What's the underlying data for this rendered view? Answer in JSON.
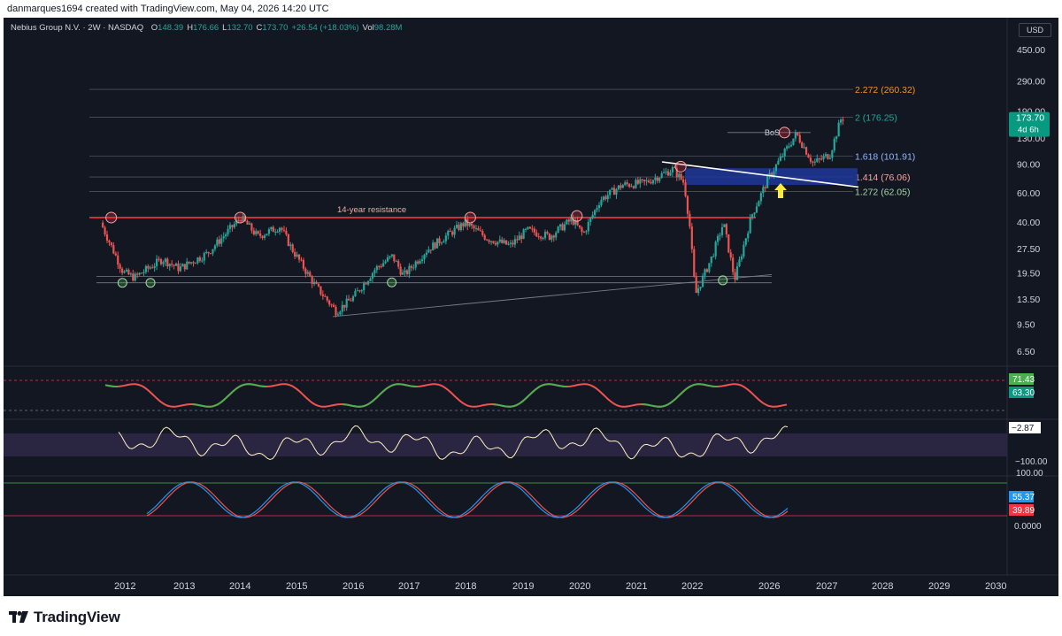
{
  "header": {
    "credit": "danmarques1694 created with TradingView.com, May 04, 2026 14:20 UTC"
  },
  "symbol": {
    "title": "Nebius Group N.V. · 2W · NASDAQ",
    "ohlc": [
      {
        "k": "O",
        "v": "148.39"
      },
      {
        "k": "H",
        "v": "176.66"
      },
      {
        "k": "L",
        "v": "132.70"
      },
      {
        "k": "C",
        "v": "173.70"
      },
      {
        "k": "",
        "v": "+26.54 (+18.03%)"
      },
      {
        "k": "Vol",
        "v": "98.28M"
      }
    ]
  },
  "currency_button": "USD",
  "price_axis": {
    "labels": [
      "450.00",
      "290.00",
      "190.00",
      "130.00",
      "90.00",
      "60.00",
      "40.00",
      "27.50",
      "19.50",
      "13.50",
      "9.50",
      "6.50"
    ],
    "last_price": "173.70",
    "countdown": "4d 6h"
  },
  "fib_levels": [
    {
      "label": "2.272 (260.32)",
      "price": 260.32,
      "color": "#f7931a"
    },
    {
      "label": "2 (176.25)",
      "price": 176.25,
      "color": "#26a69a"
    },
    {
      "label": "1.618 (101.91)",
      "price": 101.91,
      "color": "#8fb7ff"
    },
    {
      "label": "1.414 (76.06)",
      "price": 76.06,
      "color": "#f7a6a6"
    },
    {
      "label": "1.272 (62.05)",
      "price": 62.05,
      "color": "#a5d6a7"
    }
  ],
  "annotations": {
    "resistance": "14-year resistance",
    "bos": "BoS"
  },
  "indicators": {
    "rsi": {
      "upper": "71.43",
      "lower": "63.30"
    },
    "cci": {
      "value": "−2.87",
      "bottom": "−100.00"
    },
    "stoch": {
      "top": "100.00",
      "k": "55.37",
      "d": "39.89",
      "bottom": "0.0000"
    }
  },
  "time_axis": [
    "2012",
    "2013",
    "2014",
    "2015",
    "2016",
    "2017",
    "2018",
    "2019",
    "2020",
    "2021",
    "2022",
    "2026",
    "2027",
    "2028",
    "2029",
    "2030"
  ],
  "colors": {
    "background": "#131722",
    "up": "#26a69a",
    "down": "#ef5350",
    "resistance": "#f23645",
    "zone": "#1e3799",
    "arrow": "#ffeb3b"
  },
  "logo": {
    "text": "TradingView"
  },
  "chart_data": {
    "type": "candlestick",
    "scale": "log",
    "ylim": [
      6.5,
      450
    ],
    "resistance_level": 43,
    "path": [
      [
        2011.6,
        40
      ],
      [
        2012.0,
        20
      ],
      [
        2012.2,
        18.5
      ],
      [
        2012.7,
        24
      ],
      [
        2013.0,
        21
      ],
      [
        2013.5,
        26
      ],
      [
        2014.1,
        43
      ],
      [
        2014.4,
        33
      ],
      [
        2014.8,
        38
      ],
      [
        2015.0,
        28
      ],
      [
        2015.4,
        17
      ],
      [
        2015.8,
        11.5
      ],
      [
        2016.1,
        14
      ],
      [
        2016.5,
        21
      ],
      [
        2016.8,
        25
      ],
      [
        2017.0,
        19
      ],
      [
        2017.4,
        27
      ],
      [
        2017.8,
        34
      ],
      [
        2018.1,
        40
      ],
      [
        2018.5,
        32
      ],
      [
        2018.9,
        29
      ],
      [
        2019.2,
        36
      ],
      [
        2019.6,
        33
      ],
      [
        2020.0,
        42
      ],
      [
        2020.2,
        34
      ],
      [
        2020.5,
        55
      ],
      [
        2020.9,
        68
      ],
      [
        2021.3,
        70
      ],
      [
        2021.8,
        85
      ],
      [
        2022.0,
        70
      ],
      [
        2022.1,
        38
      ],
      [
        2022.2,
        14.5
      ],
      [
        2022.5,
        25
      ],
      [
        2022.7,
        40
      ],
      [
        2022.9,
        18
      ],
      [
        2023.2,
        44
      ],
      [
        2023.5,
        75
      ],
      [
        2024.0,
        140
      ],
      [
        2024.3,
        92
      ],
      [
        2024.6,
        105
      ],
      [
        2024.8,
        174
      ]
    ]
  }
}
